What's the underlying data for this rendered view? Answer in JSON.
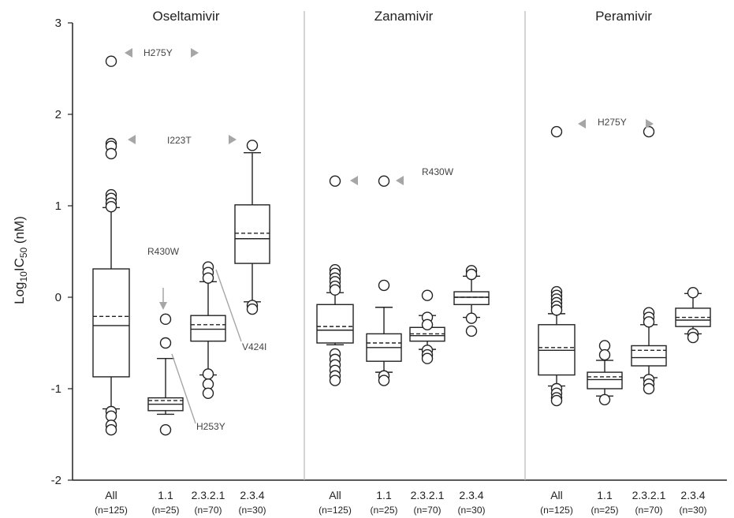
{
  "chart_data": {
    "type": "box",
    "ylabel": {
      "main": "Log",
      "sub1": "10",
      "mid": "IC",
      "sub2": "50",
      "tail": " (nM)"
    },
    "ylim": [
      -2,
      3
    ],
    "yticks": [
      -2,
      -1,
      0,
      1,
      2,
      3
    ],
    "categories": [
      {
        "label": "All",
        "n": "(n=125)"
      },
      {
        "label": "1.1",
        "n": "(n=25)"
      },
      {
        "label": "2.3.2.1",
        "n": "(n=70)"
      },
      {
        "label": "2.3.4",
        "n": "(n=30)"
      }
    ],
    "panels": [
      {
        "title": "Oseltamivir",
        "boxes": [
          {
            "whisker_low": -1.22,
            "q1": -0.87,
            "median": -0.31,
            "mean": -0.21,
            "q3": 0.31,
            "whisker_high": 0.98,
            "outliers": [
              2.58,
              1.68,
              1.65,
              1.57,
              1.12,
              1.08,
              1.03,
              0.99,
              -1.25,
              -1.3,
              -1.4,
              -1.45
            ]
          },
          {
            "whisker_low": -1.28,
            "q1": -1.24,
            "median": -1.17,
            "mean": -1.13,
            "q3": -1.1,
            "whisker_high": -0.67,
            "outliers": [
              -0.24,
              -0.5,
              -1.45
            ]
          },
          {
            "whisker_low": -0.85,
            "q1": -0.48,
            "median": -0.35,
            "mean": -0.3,
            "q3": -0.2,
            "whisker_high": 0.17,
            "outliers": [
              0.33,
              0.27,
              0.21,
              -0.84,
              -0.95,
              -1.05
            ]
          },
          {
            "whisker_low": -0.05,
            "q1": 0.37,
            "median": 0.64,
            "mean": 0.7,
            "q3": 1.01,
            "whisker_high": 1.58,
            "outliers": [
              1.66,
              -0.09,
              -0.13
            ]
          }
        ],
        "annotations": [
          {
            "text": "H275Y",
            "arrows": "both"
          },
          {
            "text": "I223T",
            "arrows": "both"
          },
          {
            "text": "R430W",
            "arrows": "down"
          },
          {
            "text": "V424I",
            "arrows": "line"
          },
          {
            "text": "H253Y",
            "arrows": "line"
          }
        ]
      },
      {
        "title": "Zanamivir",
        "boxes": [
          {
            "whisker_low": -0.52,
            "q1": -0.5,
            "median": -0.36,
            "mean": -0.32,
            "q3": -0.08,
            "whisker_high": 0.05,
            "outliers": [
              1.27,
              0.3,
              0.26,
              0.21,
              0.17,
              0.12,
              0.08,
              -0.62,
              -0.68,
              -0.74,
              -0.8,
              -0.86,
              -0.91
            ]
          },
          {
            "whisker_low": -0.82,
            "q1": -0.7,
            "median": -0.55,
            "mean": -0.5,
            "q3": -0.4,
            "whisker_high": -0.11,
            "outliers": [
              1.27,
              0.13,
              -0.86,
              -0.91
            ]
          },
          {
            "whisker_low": -0.57,
            "q1": -0.48,
            "median": -0.42,
            "mean": -0.4,
            "q3": -0.33,
            "whisker_high": -0.2,
            "outliers": [
              0.02,
              -0.22,
              -0.3,
              -0.58,
              -0.63,
              -0.67
            ]
          },
          {
            "whisker_low": -0.22,
            "q1": -0.08,
            "median": 0.0,
            "mean": 0.0,
            "q3": 0.06,
            "whisker_high": 0.23,
            "outliers": [
              0.29,
              0.25,
              -0.23,
              -0.37
            ]
          }
        ],
        "annotations": [
          {
            "text": "R430W",
            "arrows": "left"
          }
        ]
      },
      {
        "title": "Peramivir",
        "boxes": [
          {
            "whisker_low": -0.97,
            "q1": -0.85,
            "median": -0.58,
            "mean": -0.55,
            "q3": -0.3,
            "whisker_high": -0.18,
            "outliers": [
              1.81,
              0.06,
              0.02,
              -0.02,
              -0.06,
              -0.1,
              -0.14,
              -1.0,
              -1.05,
              -1.1,
              -1.13
            ]
          },
          {
            "whisker_low": -1.08,
            "q1": -1.0,
            "median": -0.9,
            "mean": -0.87,
            "q3": -0.82,
            "whisker_high": -0.69,
            "outliers": [
              -0.53,
              -0.63,
              -1.12
            ]
          },
          {
            "whisker_low": -0.88,
            "q1": -0.75,
            "median": -0.66,
            "mean": -0.58,
            "q3": -0.53,
            "whisker_high": -0.3,
            "outliers": [
              1.81,
              -0.17,
              -0.22,
              -0.27,
              -0.9,
              -0.95,
              -1.0
            ]
          },
          {
            "whisker_low": -0.4,
            "q1": -0.32,
            "median": -0.25,
            "mean": -0.22,
            "q3": -0.12,
            "whisker_high": 0.04,
            "outliers": [
              0.05,
              -0.4,
              -0.44
            ]
          }
        ],
        "annotations": [
          {
            "text": "H275Y",
            "arrows": "both"
          }
        ]
      }
    ]
  }
}
